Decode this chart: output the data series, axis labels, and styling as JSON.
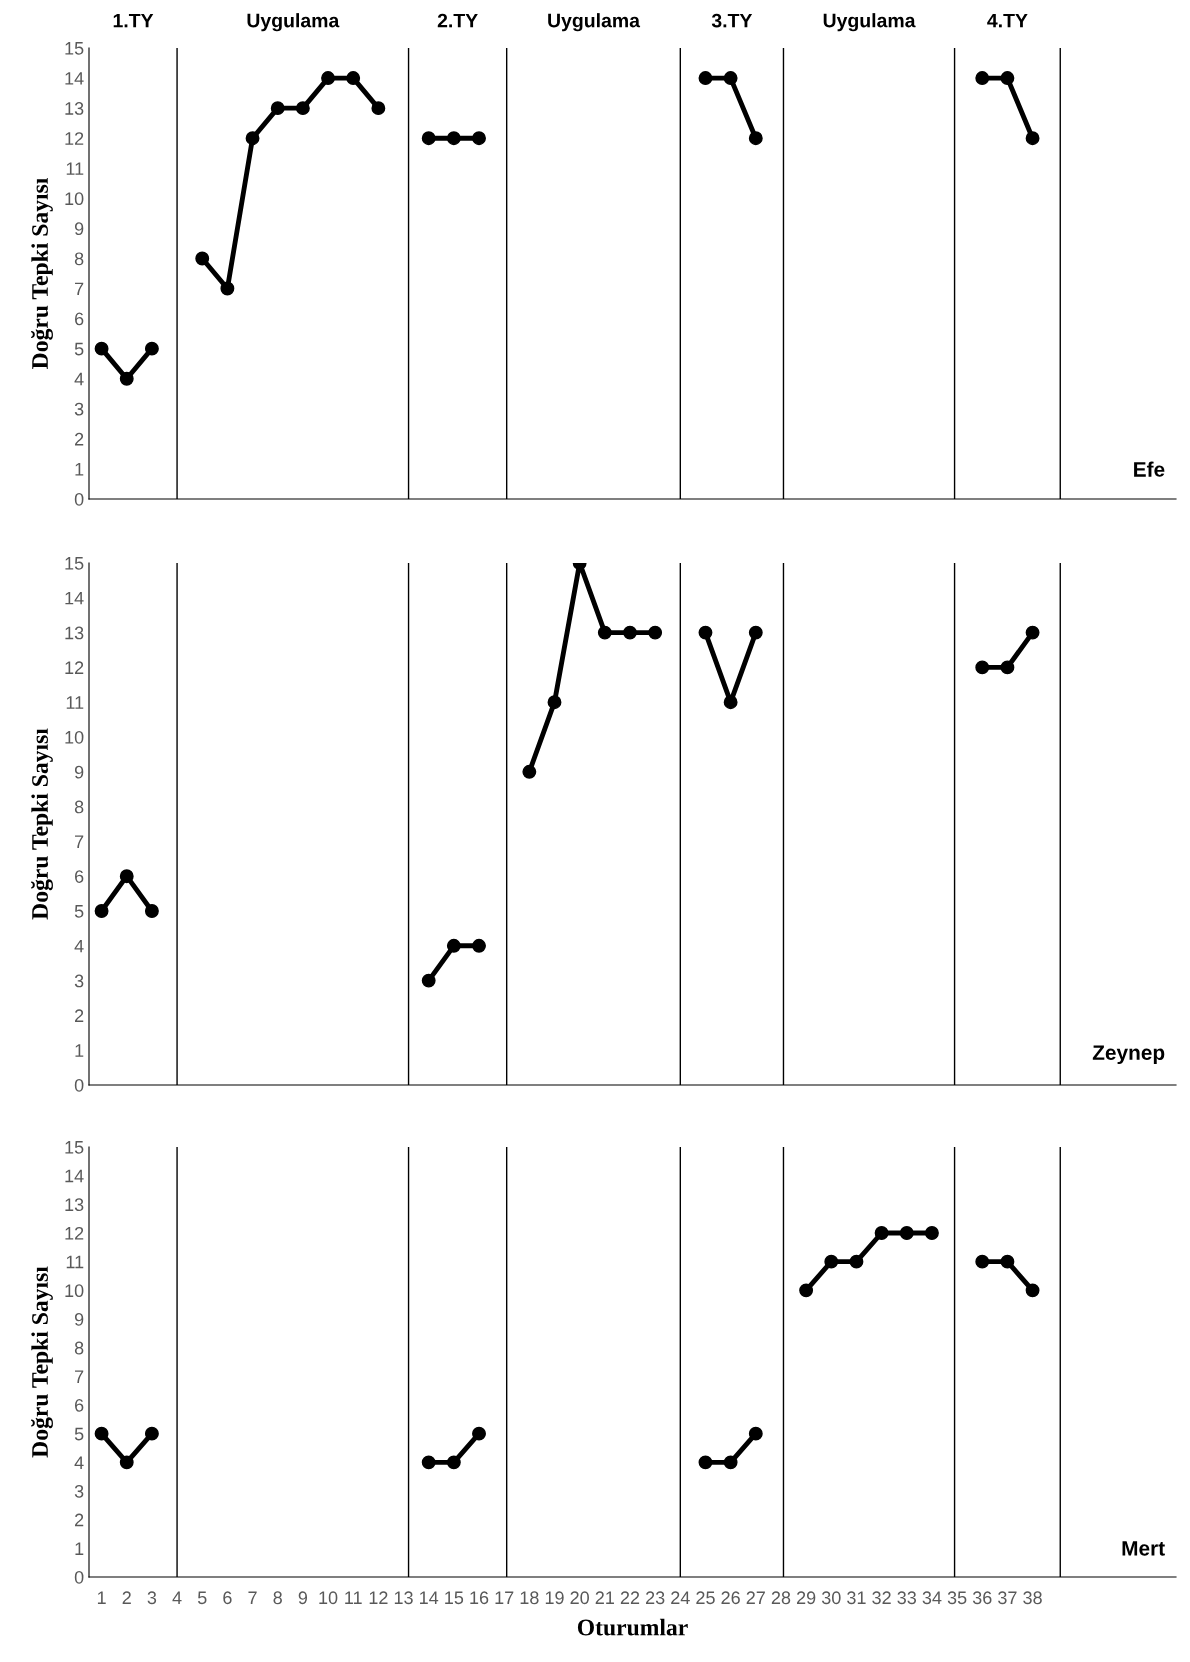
{
  "chart_data": [
    {
      "type": "line",
      "ylabel": "Doğru Tepki Sayısı",
      "x": [
        1,
        2,
        3,
        4,
        5,
        6,
        7,
        8,
        9,
        10,
        11,
        12,
        13,
        14,
        15,
        16,
        17,
        18,
        19,
        20,
        21,
        22,
        23,
        24,
        25,
        26,
        27,
        28,
        29,
        30,
        31,
        32,
        33,
        34,
        35,
        36,
        37,
        38
      ],
      "series": [
        {
          "color": "#000000",
          "values": [
            5,
            4,
            5,
            null,
            8,
            7,
            12,
            13,
            13,
            14,
            14,
            13,
            null,
            12,
            12,
            12,
            null,
            null,
            null,
            null,
            null,
            null,
            null,
            null,
            14,
            14,
            12,
            null,
            null,
            null,
            null,
            null,
            null,
            null,
            null,
            14,
            14,
            12
          ]
        }
      ],
      "xlim": [
        0.5,
        43.7
      ],
      "ylim": [
        0,
        15
      ],
      "yticks": [
        0,
        1,
        2,
        3,
        4,
        5,
        6,
        7,
        8,
        9,
        10,
        11,
        12,
        13,
        14,
        15
      ],
      "ref_lines": [
        {
          "axis": "x",
          "value": 4
        },
        {
          "axis": "x",
          "value": 13.2
        },
        {
          "axis": "x",
          "value": 17.1
        },
        {
          "axis": "x",
          "value": 24
        },
        {
          "axis": "x",
          "value": 28.1
        },
        {
          "axis": "x",
          "value": 34.9
        },
        {
          "axis": "x",
          "value": 39.1
        }
      ],
      "annotations": [
        "1.TY",
        "Uygulama",
        "2.TY",
        "Uygulama",
        "3.TY",
        "Uygulama",
        "4.TY",
        "Efe"
      ],
      "marker": "circle",
      "line_style": "solid",
      "grid": false,
      "legend": false,
      "tick_labels": "y"
    },
    {
      "type": "line",
      "ylabel": "Doğru Tepki Sayısı",
      "x": [
        1,
        2,
        3,
        4,
        5,
        6,
        7,
        8,
        9,
        10,
        11,
        12,
        13,
        14,
        15,
        16,
        17,
        18,
        19,
        20,
        21,
        22,
        23,
        24,
        25,
        26,
        27,
        28,
        29,
        30,
        31,
        32,
        33,
        34,
        35,
        36,
        37,
        38
      ],
      "series": [
        {
          "color": "#000000",
          "values": [
            5,
            6,
            5,
            null,
            null,
            null,
            null,
            null,
            null,
            null,
            null,
            null,
            null,
            3,
            4,
            4,
            null,
            9,
            11,
            15,
            13,
            13,
            13,
            null,
            13,
            11,
            13,
            null,
            null,
            null,
            null,
            null,
            null,
            null,
            null,
            12,
            12,
            13
          ]
        }
      ],
      "xlim": [
        0.5,
        43.7
      ],
      "ylim": [
        0,
        15
      ],
      "yticks": [
        0,
        1,
        2,
        3,
        4,
        5,
        6,
        7,
        8,
        9,
        10,
        11,
        12,
        13,
        14,
        15
      ],
      "ref_lines": [
        {
          "axis": "x",
          "value": 4
        },
        {
          "axis": "x",
          "value": 13.2
        },
        {
          "axis": "x",
          "value": 17.1
        },
        {
          "axis": "x",
          "value": 24
        },
        {
          "axis": "x",
          "value": 28.1
        },
        {
          "axis": "x",
          "value": 34.9
        },
        {
          "axis": "x",
          "value": 39.1
        }
      ],
      "annotations": [
        "Zeynep"
      ],
      "marker": "circle",
      "line_style": "solid",
      "grid": false,
      "legend": false,
      "tick_labels": "y"
    },
    {
      "type": "line",
      "ylabel": "Doğru Tepki Sayısı",
      "xlabel": "Oturumlar",
      "x": [
        1,
        2,
        3,
        4,
        5,
        6,
        7,
        8,
        9,
        10,
        11,
        12,
        13,
        14,
        15,
        16,
        17,
        18,
        19,
        20,
        21,
        22,
        23,
        24,
        25,
        26,
        27,
        28,
        29,
        30,
        31,
        32,
        33,
        34,
        35,
        36,
        37,
        38
      ],
      "series": [
        {
          "color": "#000000",
          "values": [
            5,
            4,
            5,
            null,
            null,
            null,
            null,
            null,
            null,
            null,
            null,
            null,
            null,
            4,
            4,
            5,
            null,
            null,
            null,
            null,
            null,
            null,
            null,
            null,
            4,
            4,
            5,
            null,
            10,
            11,
            11,
            12,
            12,
            12,
            null,
            11,
            11,
            10
          ]
        }
      ],
      "xlim": [
        0.5,
        43.7
      ],
      "xticks": [
        1,
        2,
        3,
        4,
        5,
        6,
        7,
        8,
        9,
        10,
        11,
        12,
        13,
        14,
        15,
        16,
        17,
        18,
        19,
        20,
        21,
        22,
        23,
        24,
        25,
        26,
        27,
        28,
        29,
        30,
        31,
        32,
        33,
        34,
        35,
        36,
        37,
        38
      ],
      "ylim": [
        0,
        15
      ],
      "yticks": [
        0,
        1,
        2,
        3,
        4,
        5,
        6,
        7,
        8,
        9,
        10,
        11,
        12,
        13,
        14,
        15
      ],
      "ref_lines": [
        {
          "axis": "x",
          "value": 4
        },
        {
          "axis": "x",
          "value": 13.2
        },
        {
          "axis": "x",
          "value": 17.1
        },
        {
          "axis": "x",
          "value": 24
        },
        {
          "axis": "x",
          "value": 28.1
        },
        {
          "axis": "x",
          "value": 34.9
        },
        {
          "axis": "x",
          "value": 39.1
        }
      ],
      "annotations": [
        "Mert"
      ],
      "marker": "circle",
      "line_style": "solid",
      "grid": false,
      "legend": false
    }
  ]
}
